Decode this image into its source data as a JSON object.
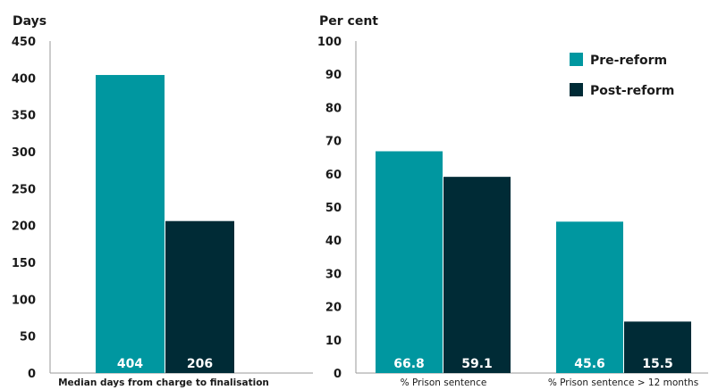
{
  "chart_data": [
    {
      "type": "bar",
      "ylabel": "Days",
      "ylim": [
        0,
        450
      ],
      "yticks": [
        0,
        50,
        100,
        150,
        200,
        250,
        300,
        350,
        400,
        450
      ],
      "categories": [
        "Median days from charge to finalisation"
      ],
      "series": [
        {
          "name": "Pre-reform",
          "values": [
            404
          ],
          "color": "#0097a0"
        },
        {
          "name": "Post-reform",
          "values": [
            206
          ],
          "color": "#002b36"
        }
      ]
    },
    {
      "type": "bar",
      "ylabel": "Per cent",
      "ylim": [
        0,
        100
      ],
      "yticks": [
        0,
        10,
        20,
        30,
        40,
        50,
        60,
        70,
        80,
        90,
        100
      ],
      "categories": [
        "% Prison sentence",
        "% Prison sentence > 12 months"
      ],
      "series": [
        {
          "name": "Pre-reform",
          "values": [
            66.8,
            45.6
          ],
          "color": "#0097a0"
        },
        {
          "name": "Post-reform",
          "values": [
            59.1,
            15.5
          ],
          "color": "#002b36"
        }
      ],
      "legend": "top-right"
    }
  ]
}
